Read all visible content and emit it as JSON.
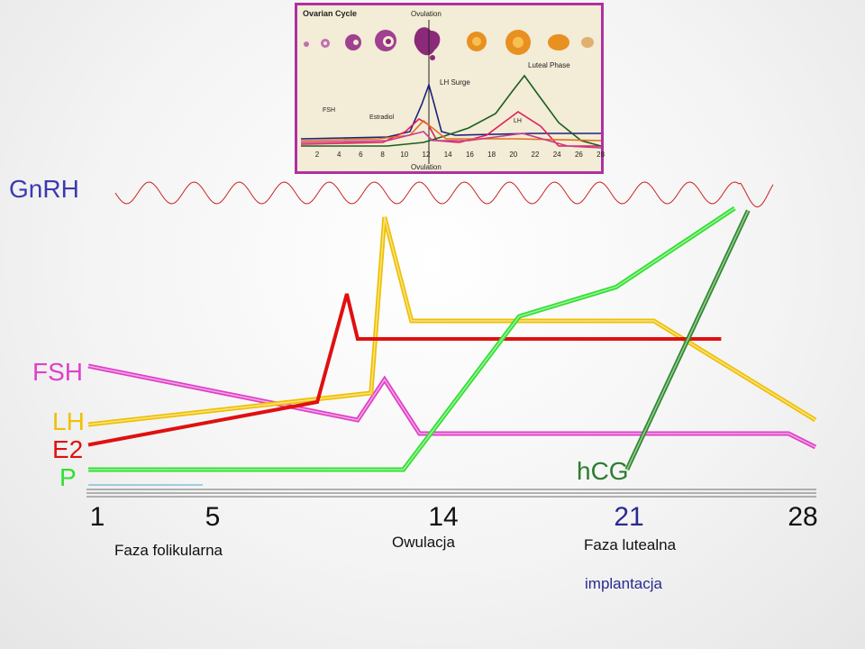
{
  "inset": {
    "title": "Ovarian Cycle",
    "ovulation_top": "Ovulation",
    "ovulation_bottom": "Ovulation",
    "lh_surge": "LH Surge",
    "luteal_phase": "Luteal Phase",
    "fsh": "FSH",
    "estradiol": "Estradiol",
    "lh": "LH",
    "days": [
      "2",
      "4",
      "6",
      "8",
      "10",
      "12",
      "14",
      "16",
      "18",
      "20",
      "22",
      "24",
      "26",
      "28"
    ],
    "colors": {
      "blue": "#1a237e",
      "red": "#e0205a",
      "green": "#1b5e20",
      "orange": "#e07020",
      "pink": "#c83c8c"
    }
  },
  "labels": {
    "gnrh": "GnRH",
    "fsh": "FSH",
    "lh": "LH",
    "e2": "E2",
    "p": "P",
    "hcg": "hCG",
    "phase_follicular": "Faza folikularna",
    "ovulation": "Owulacja",
    "phase_luteal": "Faza lutealna",
    "implantation": "implantacja"
  },
  "chart_data": {
    "type": "line",
    "x_ticks": [
      "1",
      "5",
      "14",
      "21",
      "28"
    ],
    "series": [
      {
        "name": "FSH",
        "color": "#e040c8",
        "points": [
          [
            1,
            4.6
          ],
          [
            11,
            2.2
          ],
          [
            12,
            4.0
          ],
          [
            13.3,
            1.6
          ],
          [
            27,
            1.6
          ],
          [
            28,
            1.0
          ]
        ]
      },
      {
        "name": "LH",
        "color": "#f0c000",
        "points": [
          [
            1,
            2.0
          ],
          [
            11.5,
            3.4
          ],
          [
            12,
            11.2
          ],
          [
            13,
            6.6
          ],
          [
            22,
            6.6
          ],
          [
            28,
            2.2
          ]
        ]
      },
      {
        "name": "E2",
        "color": "#e01010",
        "points": [
          [
            1,
            1.1
          ],
          [
            9.5,
            3.0
          ],
          [
            10.6,
            7.8
          ],
          [
            11,
            5.8
          ],
          [
            24.5,
            5.8
          ]
        ]
      },
      {
        "name": "P",
        "color": "#30e030",
        "points": [
          [
            1,
            0
          ],
          [
            12.7,
            0
          ],
          [
            17,
            6.8
          ],
          [
            20.6,
            8.1
          ],
          [
            25,
            11.6
          ]
        ]
      },
      {
        "name": "hCG",
        "color": "#2e8b2e",
        "points": [
          [
            21,
            0
          ],
          [
            25.5,
            11.5
          ]
        ]
      }
    ],
    "gnrh": {
      "name": "GnRH",
      "color": "#cc2020"
    }
  }
}
